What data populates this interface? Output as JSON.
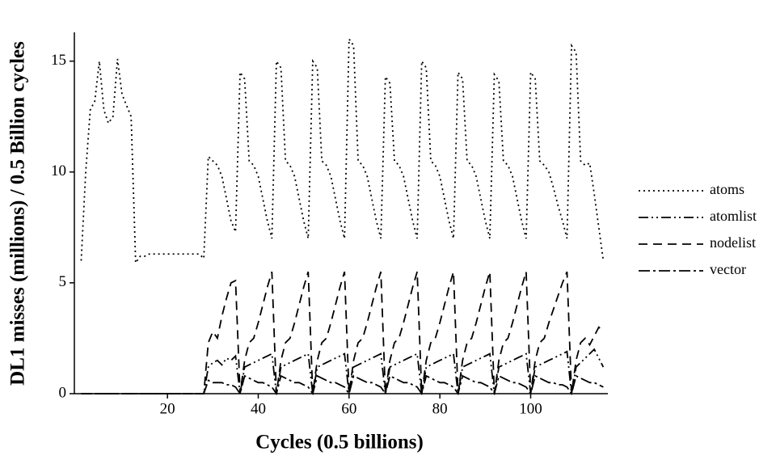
{
  "chart_data": {
    "type": "line",
    "xlabel": "Cycles (0.5 billions)",
    "ylabel": "DL1 misses (millions) / 0.5 Billion cycles",
    "x": [
      1,
      2,
      3,
      4,
      5,
      6,
      7,
      8,
      9,
      10,
      11,
      12,
      13,
      14,
      15,
      16,
      17,
      18,
      19,
      20,
      21,
      22,
      23,
      24,
      25,
      26,
      27,
      28,
      29,
      30,
      31,
      32,
      33,
      34,
      35,
      36,
      37,
      38,
      39,
      40,
      41,
      42,
      43,
      44,
      45,
      46,
      47,
      48,
      49,
      50,
      51,
      52,
      53,
      54,
      55,
      56,
      57,
      58,
      59,
      60,
      61,
      62,
      63,
      64,
      65,
      66,
      67,
      68,
      69,
      70,
      71,
      72,
      73,
      74,
      75,
      76,
      77,
      78,
      79,
      80,
      81,
      82,
      83,
      84,
      85,
      86,
      87,
      88,
      89,
      90,
      91,
      92,
      93,
      94,
      95,
      96,
      97,
      98,
      99,
      100,
      101,
      102,
      103,
      104,
      105,
      106,
      107,
      108,
      109,
      110,
      111,
      112,
      113,
      114,
      115,
      116
    ],
    "series": [
      {
        "name": "atoms",
        "color": "#000000",
        "dash": "2,4",
        "values": [
          6,
          10,
          12.8,
          13.2,
          15,
          12.8,
          12.2,
          12.5,
          15.1,
          13.5,
          13,
          12.5,
          5.9,
          6.2,
          6.2,
          6.3,
          6.3,
          6.3,
          6.3,
          6.3,
          6.3,
          6.3,
          6.3,
          6.3,
          6.3,
          6.3,
          6.3,
          6.1,
          10.7,
          10.5,
          10.3,
          9.8,
          8.8,
          7.8,
          7.3,
          14.5,
          14.2,
          10.5,
          10.3,
          9.8,
          8.8,
          7.8,
          7.0,
          15,
          14.7,
          10.5,
          10.3,
          9.8,
          8.8,
          7.8,
          7.0,
          15,
          14.7,
          10.5,
          10.3,
          9.8,
          8.8,
          7.8,
          7.0,
          16,
          15.7,
          10.5,
          10.3,
          9.8,
          8.8,
          7.8,
          7.0,
          14.3,
          14,
          10.5,
          10.3,
          9.8,
          8.8,
          7.8,
          7.0,
          15,
          14.7,
          10.5,
          10.3,
          9.8,
          8.8,
          7.8,
          7.0,
          14.5,
          14.2,
          10.5,
          10.3,
          9.8,
          8.8,
          7.8,
          7.0,
          14.4,
          14.1,
          10.5,
          10.3,
          9.8,
          8.8,
          7.8,
          7.0,
          14.5,
          14.2,
          10.5,
          10.3,
          10,
          9.3,
          8.5,
          7.8,
          7.0,
          15.7,
          15.4,
          10.5,
          10.3,
          10.4,
          9,
          7.5,
          6
        ]
      },
      {
        "name": "atomlist",
        "color": "#000000",
        "dash": "12,4,2,4,2,4",
        "values": [
          0,
          0,
          0,
          0,
          0,
          0,
          0,
          0,
          0,
          0,
          0,
          0,
          0,
          0,
          0,
          0,
          0,
          0,
          0,
          0,
          0,
          0,
          0,
          0,
          0,
          0,
          0,
          0,
          1.2,
          1.4,
          1.5,
          1.3,
          1.6,
          1.5,
          1.7,
          0,
          1.2,
          1.3,
          1.4,
          1.5,
          1.6,
          1.7,
          1.8,
          0,
          1.2,
          1.3,
          1.4,
          1.5,
          1.6,
          1.7,
          1.8,
          0,
          1.2,
          1.3,
          1.4,
          1.5,
          1.6,
          1.7,
          1.8,
          0,
          1.2,
          1.3,
          1.4,
          1.5,
          1.6,
          1.7,
          1.8,
          0,
          1.2,
          1.3,
          1.4,
          1.5,
          1.6,
          1.7,
          1.8,
          0,
          1.2,
          1.3,
          1.4,
          1.5,
          1.6,
          1.7,
          1.8,
          0,
          1.2,
          1.3,
          1.4,
          1.5,
          1.6,
          1.7,
          1.8,
          0,
          1.2,
          1.3,
          1.4,
          1.5,
          1.6,
          1.7,
          1.8,
          0,
          1.2,
          1.3,
          1.4,
          1.5,
          1.6,
          1.7,
          1.8,
          1.9,
          0,
          1.2,
          1.4,
          1.6,
          1.8,
          2,
          1.6,
          1.2
        ]
      },
      {
        "name": "nodelist",
        "color": "#000000",
        "dash": "11,7",
        "values": [
          0,
          0,
          0,
          0,
          0,
          0,
          0,
          0,
          0,
          0,
          0,
          0,
          0,
          0,
          0,
          0,
          0,
          0,
          0,
          0,
          0,
          0,
          0,
          0,
          0,
          0,
          0,
          0,
          2.3,
          2.8,
          2.5,
          3.5,
          4.3,
          5,
          5.1,
          0,
          1.5,
          2.3,
          2.5,
          3.2,
          4,
          4.8,
          5.5,
          0,
          1.5,
          2.3,
          2.5,
          3.2,
          4,
          4.8,
          5.5,
          0,
          1.5,
          2.3,
          2.5,
          3.2,
          4,
          4.8,
          5.5,
          0,
          1.5,
          2.3,
          2.5,
          3.2,
          4,
          4.8,
          5.5,
          0,
          1.5,
          2.3,
          2.5,
          3.2,
          4,
          4.8,
          5.5,
          0,
          1.5,
          2.3,
          2.5,
          3.2,
          4,
          4.8,
          5.5,
          0,
          1.5,
          2.3,
          2.5,
          3.2,
          4,
          4.8,
          5.5,
          0,
          1.5,
          2.3,
          2.5,
          3.2,
          4,
          4.8,
          5.5,
          0,
          1.5,
          2.3,
          2.5,
          3.2,
          3.8,
          4.4,
          5,
          5.5,
          0,
          1.5,
          2.3,
          2.5,
          2.2,
          2.6,
          3,
          2.8
        ]
      },
      {
        "name": "vector",
        "color": "#000000",
        "dash": "14,4,3,4",
        "values": [
          0,
          0,
          0,
          0,
          0,
          0,
          0,
          0,
          0,
          0,
          0,
          0,
          0,
          0,
          0,
          0,
          0,
          0,
          0,
          0,
          0,
          0,
          0,
          0,
          0,
          0,
          0,
          0,
          0.6,
          0.5,
          0.5,
          0.5,
          0.4,
          0.4,
          0.3,
          0,
          0.8,
          0.7,
          0.6,
          0.5,
          0.5,
          0.4,
          0.3,
          0,
          0.8,
          0.7,
          0.6,
          0.5,
          0.5,
          0.4,
          0.3,
          0,
          0.8,
          0.7,
          0.6,
          0.5,
          0.5,
          0.4,
          0.3,
          0,
          0.8,
          0.7,
          0.6,
          0.5,
          0.5,
          0.4,
          0.3,
          0,
          0.8,
          0.7,
          0.6,
          0.5,
          0.5,
          0.4,
          0.3,
          0,
          0.8,
          0.7,
          0.6,
          0.5,
          0.5,
          0.4,
          0.3,
          0,
          0.8,
          0.7,
          0.6,
          0.5,
          0.5,
          0.4,
          0.3,
          0,
          0.8,
          0.7,
          0.6,
          0.5,
          0.5,
          0.4,
          0.3,
          0,
          0.8,
          0.7,
          0.6,
          0.5,
          0.5,
          0.4,
          0.4,
          0.3,
          0,
          0.8,
          0.7,
          0.6,
          0.5,
          0.5,
          0.4,
          0.3
        ]
      }
    ],
    "xlim": [
      -0.5,
      117
    ],
    "xticks": [
      20,
      40,
      60,
      80,
      100
    ],
    "ylim": [
      0,
      16.3
    ],
    "yticks": [
      0,
      5,
      10,
      15
    ],
    "grid": false,
    "legend": "right"
  }
}
